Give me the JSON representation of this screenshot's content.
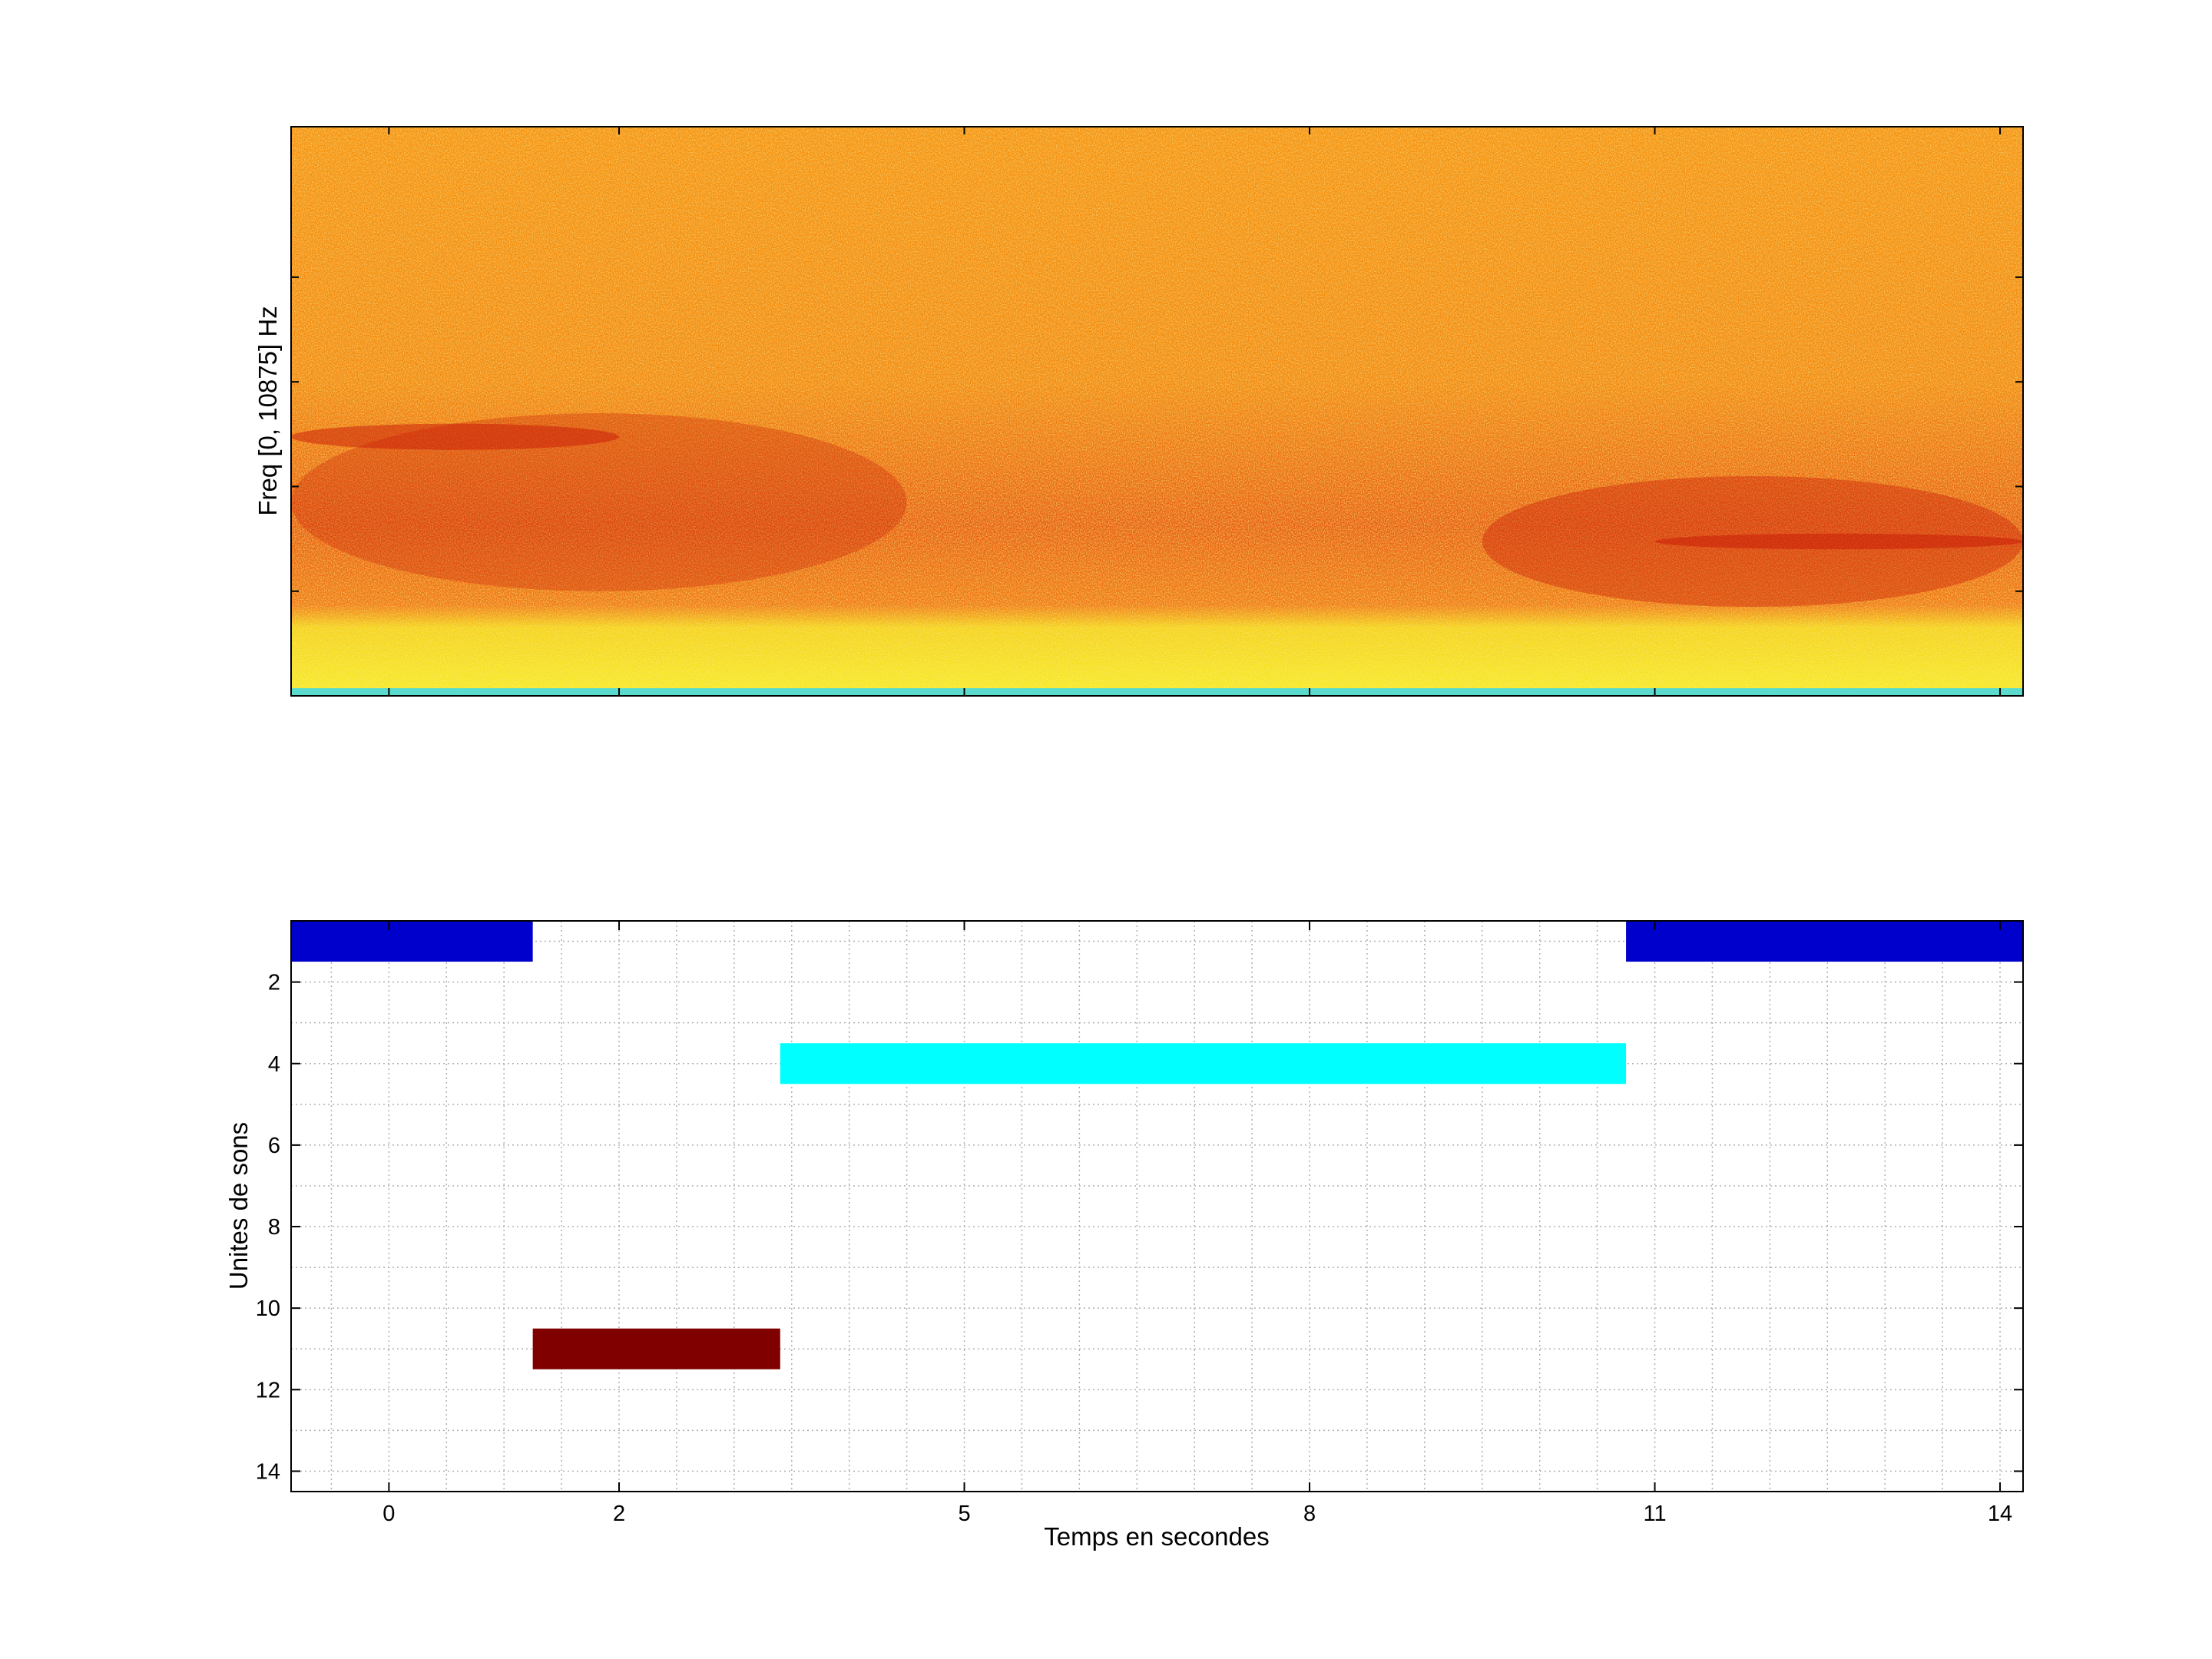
{
  "chart_data": [
    {
      "type": "heatmap",
      "ylabel": "Freq [0, 10875] Hz",
      "xlabel": "",
      "x_range": [
        -0.85,
        14.2
      ],
      "y_range": [
        0,
        10875
      ],
      "colormap": "hot",
      "colors": {
        "background": "#f5930f",
        "dark_band": "#c81808",
        "low_band": "#f5e620",
        "baseline": "#3ed8e8"
      },
      "bands": [
        {
          "t_start": -0.85,
          "t_end": 4.5,
          "f_low": 2000,
          "f_high": 5400,
          "intensity": 0.55
        },
        {
          "t_start": -0.85,
          "t_end": 2.0,
          "f_low": 4700,
          "f_high": 5200,
          "intensity": 0.9
        },
        {
          "t_start": 9.5,
          "t_end": 14.2,
          "f_low": 1700,
          "f_high": 4200,
          "intensity": 0.7
        },
        {
          "t_start": 11.0,
          "t_end": 14.2,
          "f_low": 2800,
          "f_high": 3100,
          "intensity": 0.95
        }
      ]
    },
    {
      "type": "bar",
      "orientation": "horizontal",
      "xlabel": "Temps en secondes",
      "ylabel": "Unites de sons",
      "xlim": [
        -0.85,
        14.2
      ],
      "ylim": [
        0.5,
        14.5
      ],
      "y_reversed": true,
      "grid": true,
      "xticks": [
        0,
        2,
        5,
        8,
        11,
        14
      ],
      "xtick_labels": [
        "0",
        "2",
        "5",
        "8",
        "11",
        "14"
      ],
      "yticks": [
        2,
        4,
        6,
        8,
        10,
        12,
        14
      ],
      "ytick_labels": [
        "2",
        "4",
        "6",
        "8",
        "10",
        "12",
        "14"
      ],
      "segments": [
        {
          "unit": 1,
          "start": -0.85,
          "end": 1.25,
          "color": "#0000cc"
        },
        {
          "unit": 1,
          "start": 10.75,
          "end": 14.2,
          "color": "#0000cc"
        },
        {
          "unit": 4,
          "start": 3.4,
          "end": 10.75,
          "color": "#00ffff"
        },
        {
          "unit": 11,
          "start": 1.25,
          "end": 3.4,
          "color": "#800000"
        }
      ]
    }
  ]
}
